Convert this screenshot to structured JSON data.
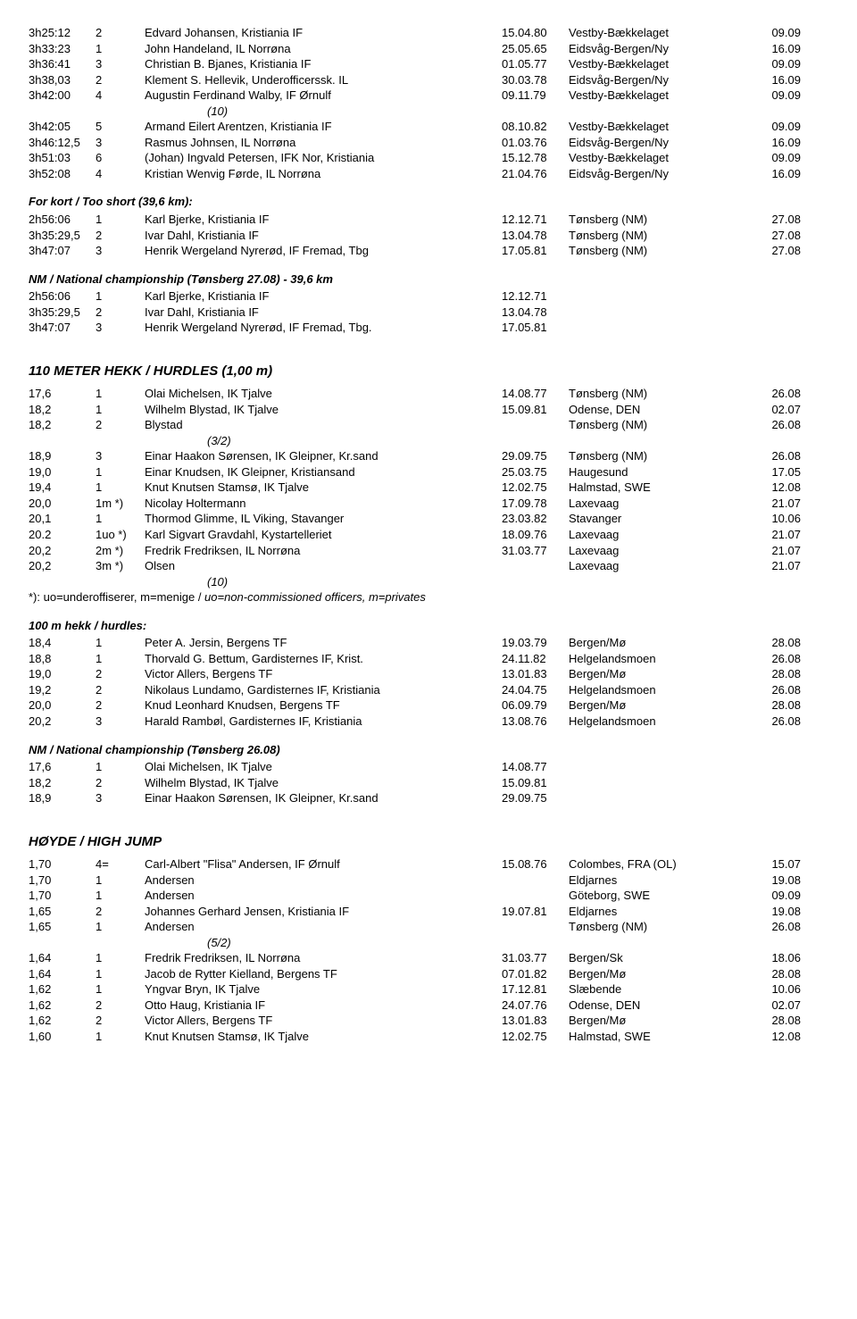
{
  "block1": [
    {
      "t": "3h25:12",
      "r": "2",
      "n": "Edvard Johansen, Kristiania IF",
      "d": "15.04.80",
      "loc": "Vestby-Bækkelaget",
      "yr": "09.09"
    },
    {
      "t": "3h33:23",
      "r": "1",
      "n": "John Handeland, IL Norrøna",
      "d": "25.05.65",
      "loc": "Eidsvåg-Bergen/Ny",
      "yr": "16.09"
    },
    {
      "t": "3h36:41",
      "r": "3",
      "n": "Christian B. Bjanes, Kristiania IF",
      "d": "01.05.77",
      "loc": "Vestby-Bækkelaget",
      "yr": "09.09"
    },
    {
      "t": "3h38,03",
      "r": "2",
      "n": "Klement S. Hellevik, Underofficerssk. IL",
      "d": "30.03.78",
      "loc": "Eidsvåg-Bergen/Ny",
      "yr": "16.09"
    },
    {
      "t": "3h42:00",
      "r": "4",
      "n": "Augustin Ferdinand Walby, IF Ørnulf",
      "d": "09.11.79",
      "loc": "Vestby-Bækkelaget",
      "yr": "09.09"
    }
  ],
  "block1_note": "(10)",
  "block1b": [
    {
      "t": "3h42:05",
      "r": "5",
      "n": "Armand Eilert Arentzen, Kristiania IF",
      "d": "08.10.82",
      "loc": "Vestby-Bækkelaget",
      "yr": "09.09"
    },
    {
      "t": "3h46:12,5",
      "r": "3",
      "n": "Rasmus Johnsen, IL Norrøna",
      "d": "01.03.76",
      "loc": "Eidsvåg-Bergen/Ny",
      "yr": "16.09"
    },
    {
      "t": "3h51:03",
      "r": "6",
      "n": "(Johan) Ingvald Petersen, IFK Nor, Kristiania",
      "d": "15.12.78",
      "loc": "Vestby-Bækkelaget",
      "yr": "09.09"
    },
    {
      "t": "3h52:08",
      "r": "4",
      "n": "Kristian Wenvig Førde, IL Norrøna",
      "d": "21.04.76",
      "loc": "Eidsvåg-Bergen/Ny",
      "yr": "16.09"
    }
  ],
  "short_title": "For kort / Too short (39,6 km):",
  "short": [
    {
      "t": "2h56:06",
      "r": "1",
      "n": "Karl Bjerke, Kristiania IF",
      "d": "12.12.71",
      "loc": "Tønsberg (NM)",
      "yr": "27.08"
    },
    {
      "t": "3h35:29,5",
      "r": "2",
      "n": "Ivar Dahl, Kristiania IF",
      "d": "13.04.78",
      "loc": "Tønsberg (NM)",
      "yr": "27.08"
    },
    {
      "t": "3h47:07",
      "r": "3",
      "n": "Henrik Wergeland Nyrerød, IF Fremad, Tbg",
      "d": "17.05.81",
      "loc": "Tønsberg (NM)",
      "yr": "27.08"
    }
  ],
  "nm1_title": "NM / National championship (Tønsberg 27.08) - 39,6 km",
  "nm1": [
    {
      "t": "2h56:06",
      "r": "1",
      "n": "Karl Bjerke, Kristiania IF",
      "d": "12.12.71"
    },
    {
      "t": "3h35:29,5",
      "r": "2",
      "n": "Ivar Dahl, Kristiania IF",
      "d": "13.04.78"
    },
    {
      "t": "3h47:07",
      "r": "3",
      "n": "Henrik Wergeland Nyrerød, IF Fremad, Tbg.",
      "d": "17.05.81"
    }
  ],
  "hurdles_title": "110 METER HEKK / HURDLES (1,00 m)",
  "hurdles_a": [
    {
      "t": "17,6",
      "r": "1",
      "n": "Olai Michelsen, IK Tjalve",
      "d": "14.08.77",
      "loc": "Tønsberg (NM)",
      "yr": "26.08"
    },
    {
      "t": "18,2",
      "r": "1",
      "n": "Wilhelm Blystad, IK Tjalve",
      "d": "15.09.81",
      "loc": "Odense, DEN",
      "yr": "02.07"
    },
    {
      "t": "18,2",
      "r": "2",
      "n": "Blystad",
      "d": "",
      "loc": "Tønsberg (NM)",
      "yr": "26.08"
    }
  ],
  "hurdles_note1": "(3/2)",
  "hurdles_b": [
    {
      "t": "18,9",
      "r": "3",
      "n": "Einar Haakon Sørensen, IK Gleipner, Kr.sand",
      "d": "29.09.75",
      "loc": "Tønsberg (NM)",
      "yr": "26.08"
    },
    {
      "t": "19,0",
      "r": "1",
      "n": "Einar Knudsen, IK Gleipner, Kristiansand",
      "d": "25.03.75",
      "loc": "Haugesund",
      "yr": "17.05"
    },
    {
      "t": "19,4",
      "r": "1",
      "n": "Knut Knutsen Stamsø, IK Tjalve",
      "d": "12.02.75",
      "loc": "Halmstad, SWE",
      "yr": "12.08"
    },
    {
      "t": "20,0",
      "r": "1m *)",
      "n": "Nicolay Holtermann",
      "d": "17.09.78",
      "loc": "Laxevaag",
      "yr": "21.07"
    },
    {
      "t": "20,1",
      "r": "1",
      "n": "Thormod Glimme, IL Viking, Stavanger",
      "d": "23.03.82",
      "loc": "Stavanger",
      "yr": "10.06"
    },
    {
      "t": "20.2",
      "r": "1uo *)",
      "n": "Karl Sigvart Gravdahl, Kystartelleriet",
      "d": "18.09.76",
      "loc": "Laxevaag",
      "yr": "21.07"
    },
    {
      "t": "20,2",
      "r": "2m *)",
      "n": "Fredrik Fredriksen, IL Norrøna",
      "d": "31.03.77",
      "loc": "Laxevaag",
      "yr": "21.07"
    },
    {
      "t": "20,2",
      "r": "3m *)",
      "n": "Olsen",
      "d": "",
      "loc": "Laxevaag",
      "yr": "21.07"
    }
  ],
  "hurdles_note2": "(10)",
  "hurdles_footnote_a": "*): uo=underoffiserer, m=menige / ",
  "hurdles_footnote_b": "uo=non-commissioned officers, m=privates",
  "h100_title": "100 m hekk / hurdles:",
  "h100": [
    {
      "t": "18,4",
      "r": "1",
      "n": "Peter A. Jersin, Bergens TF",
      "d": "19.03.79",
      "loc": "Bergen/Mø",
      "yr": "28.08"
    },
    {
      "t": "18,8",
      "r": "1",
      "n": "Thorvald G. Bettum, Gardisternes IF, Krist.",
      "d": "24.11.82",
      "loc": "Helgelandsmoen",
      "yr": "26.08"
    },
    {
      "t": "19,0",
      "r": "2",
      "n": "Victor Allers, Bergens TF",
      "d": "13.01.83",
      "loc": "Bergen/Mø",
      "yr": "28.08"
    },
    {
      "t": "19,2",
      "r": "2",
      "n": "Nikolaus Lundamo, Gardisternes IF, Kristiania",
      "d": "24.04.75",
      "loc": "Helgelandsmoen",
      "yr": "26.08"
    },
    {
      "t": "20,0",
      "r": "2",
      "n": "Knud Leonhard Knudsen, Bergens TF",
      "d": "06.09.79",
      "loc": "Bergen/Mø",
      "yr": "28.08"
    },
    {
      "t": "20,2",
      "r": "3",
      "n": "Harald Rambøl, Gardisternes IF, Kristiania",
      "d": "13.08.76",
      "loc": "Helgelandsmoen",
      "yr": "26.08"
    }
  ],
  "nm2_title": "NM / National championship (Tønsberg 26.08)",
  "nm2": [
    {
      "t": "17,6",
      "r": "1",
      "n": "Olai Michelsen, IK Tjalve",
      "d": "14.08.77"
    },
    {
      "t": "18,2",
      "r": "2",
      "n": "Wilhelm Blystad, IK Tjalve",
      "d": "15.09.81"
    },
    {
      "t": "18,9",
      "r": "3",
      "n": "Einar Haakon Sørensen, IK Gleipner, Kr.sand",
      "d": "29.09.75"
    }
  ],
  "hj_title": "HØYDE / HIGH JUMP",
  "hj_a": [
    {
      "t": "1,70",
      "r": "4=",
      "n": "Carl-Albert \"Flisa\" Andersen, IF Ørnulf",
      "d": "15.08.76",
      "loc": "Colombes, FRA (OL)",
      "yr": "15.07"
    },
    {
      "t": "1,70",
      "r": "1",
      "n": "Andersen",
      "d": "",
      "loc": "Eldjarnes",
      "yr": "19.08"
    },
    {
      "t": "1,70",
      "r": "1",
      "n": "Andersen",
      "d": "",
      "loc": "Göteborg, SWE",
      "yr": "09.09"
    },
    {
      "t": "1,65",
      "r": "2",
      "n": "Johannes Gerhard Jensen, Kristiania IF",
      "d": "19.07.81",
      "loc": "Eldjarnes",
      "yr": "19.08"
    },
    {
      "t": "1,65",
      "r": "1",
      "n": "Andersen",
      "d": "",
      "loc": "Tønsberg (NM)",
      "yr": "26.08"
    }
  ],
  "hj_note": "(5/2)",
  "hj_b": [
    {
      "t": "1,64",
      "r": "1",
      "n": "Fredrik Fredriksen, IL Norrøna",
      "d": "31.03.77",
      "loc": "Bergen/Sk",
      "yr": "18.06"
    },
    {
      "t": "1,64",
      "r": "1",
      "n": "Jacob de Rytter Kielland, Bergens TF",
      "d": "07.01.82",
      "loc": "Bergen/Mø",
      "yr": "28.08"
    },
    {
      "t": "1,62",
      "r": "1",
      "n": "Yngvar Bryn, IK Tjalve",
      "d": "17.12.81",
      "loc": "Slæbende",
      "yr": "10.06"
    },
    {
      "t": "1,62",
      "r": "2",
      "n": "Otto Haug, Kristiania IF",
      "d": "24.07.76",
      "loc": "Odense, DEN",
      "yr": "02.07"
    },
    {
      "t": "1,62",
      "r": "2",
      "n": "Victor Allers, Bergens TF",
      "d": "13.01.83",
      "loc": "Bergen/Mø",
      "yr": "28.08"
    },
    {
      "t": "1,60",
      "r": "1",
      "n": "Knut Knutsen Stamsø, IK Tjalve",
      "d": "12.02.75",
      "loc": "Halmstad, SWE",
      "yr": "12.08"
    }
  ]
}
